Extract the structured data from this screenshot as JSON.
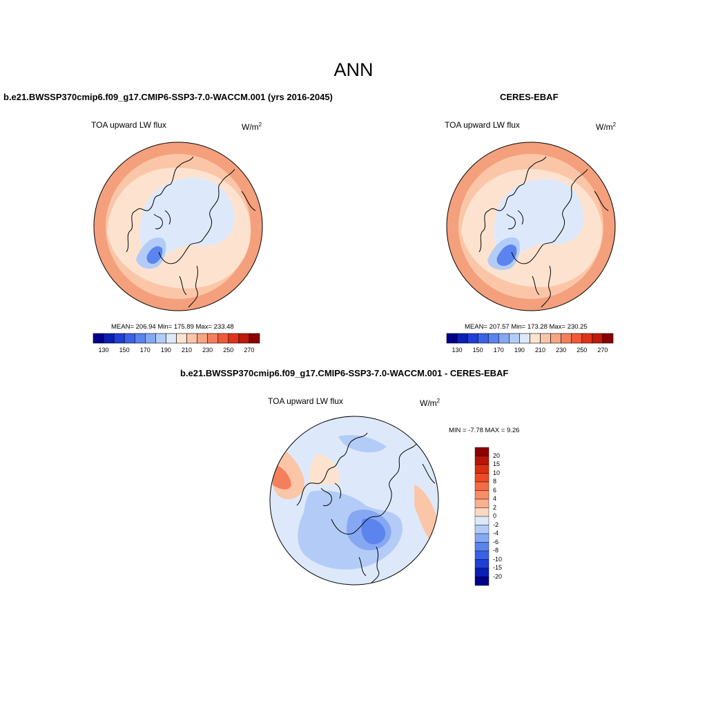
{
  "main_title": "ANN",
  "panels": {
    "model": {
      "title": "b.e21.BWSSP370cmip6.f09_g17.CMIP6-SSP3-7.0-WACCM.001 (yrs 2016-2045)",
      "variable": "TOA upward LW flux",
      "units": "W/m",
      "units_sup": "2",
      "stats": "MEAN= 206.94  Min= 175.89  Max= 233.48"
    },
    "obs": {
      "title": "CERES-EBAF",
      "variable": "TOA upward LW flux",
      "units": "W/m",
      "units_sup": "2",
      "stats": "MEAN= 207.57  Min= 173.28  Max= 230.25"
    },
    "diff": {
      "title": "b.e21.BWSSP370cmip6.f09_g17.CMIP6-SSP3-7.0-WACCM.001 - CERES-EBAF",
      "variable": "TOA upward LW flux",
      "units": "W/m",
      "units_sup": "2",
      "stats": "MIN =  -7.78 MAX =   9.26"
    }
  },
  "colorbar_abs": {
    "ticks": [
      "130",
      "150",
      "170",
      "190",
      "210",
      "230",
      "250",
      "270"
    ],
    "colors": [
      "#00008b",
      "#0a1fb3",
      "#1f3fd6",
      "#3a62e8",
      "#5b84ef",
      "#86a8f3",
      "#b3ccf7",
      "#dde9fb",
      "#fde3cf",
      "#fbc6a8",
      "#f8a583",
      "#f47f5c",
      "#ef5a38",
      "#e0321a",
      "#c01a0a",
      "#8b0000"
    ]
  },
  "colorbar_diff": {
    "ticks": [
      "20",
      "15",
      "10",
      "8",
      "6",
      "4",
      "2",
      "0",
      "-2",
      "-4",
      "-6",
      "-8",
      "-10",
      "-15",
      "-20"
    ],
    "colors": [
      "#8b0000",
      "#b81508",
      "#d8300f",
      "#ef4a25",
      "#f56b42",
      "#f78e66",
      "#f9b08e",
      "#fcd7c2",
      "#dde9fb",
      "#b3ccf7",
      "#86a8f3",
      "#5b84ef",
      "#3a62e8",
      "#1f3fd6",
      "#0a1fb3",
      "#00008b"
    ]
  },
  "map_colors": {
    "outer_warm": "#f4a07c",
    "mid_warm": "#fbc6a8",
    "light_warm": "#fde3cf",
    "arctic": "#dde9fb",
    "greenland_light": "#b3ccf7",
    "greenland_core": "#5b84ef",
    "diff_bg": "#dde9fb",
    "diff_mid": "#b3ccf7",
    "diff_blue": "#86a8f3",
    "diff_deep": "#5b84ef",
    "diff_warm": "#fbc6a8",
    "diff_hot": "#f47f5c"
  }
}
